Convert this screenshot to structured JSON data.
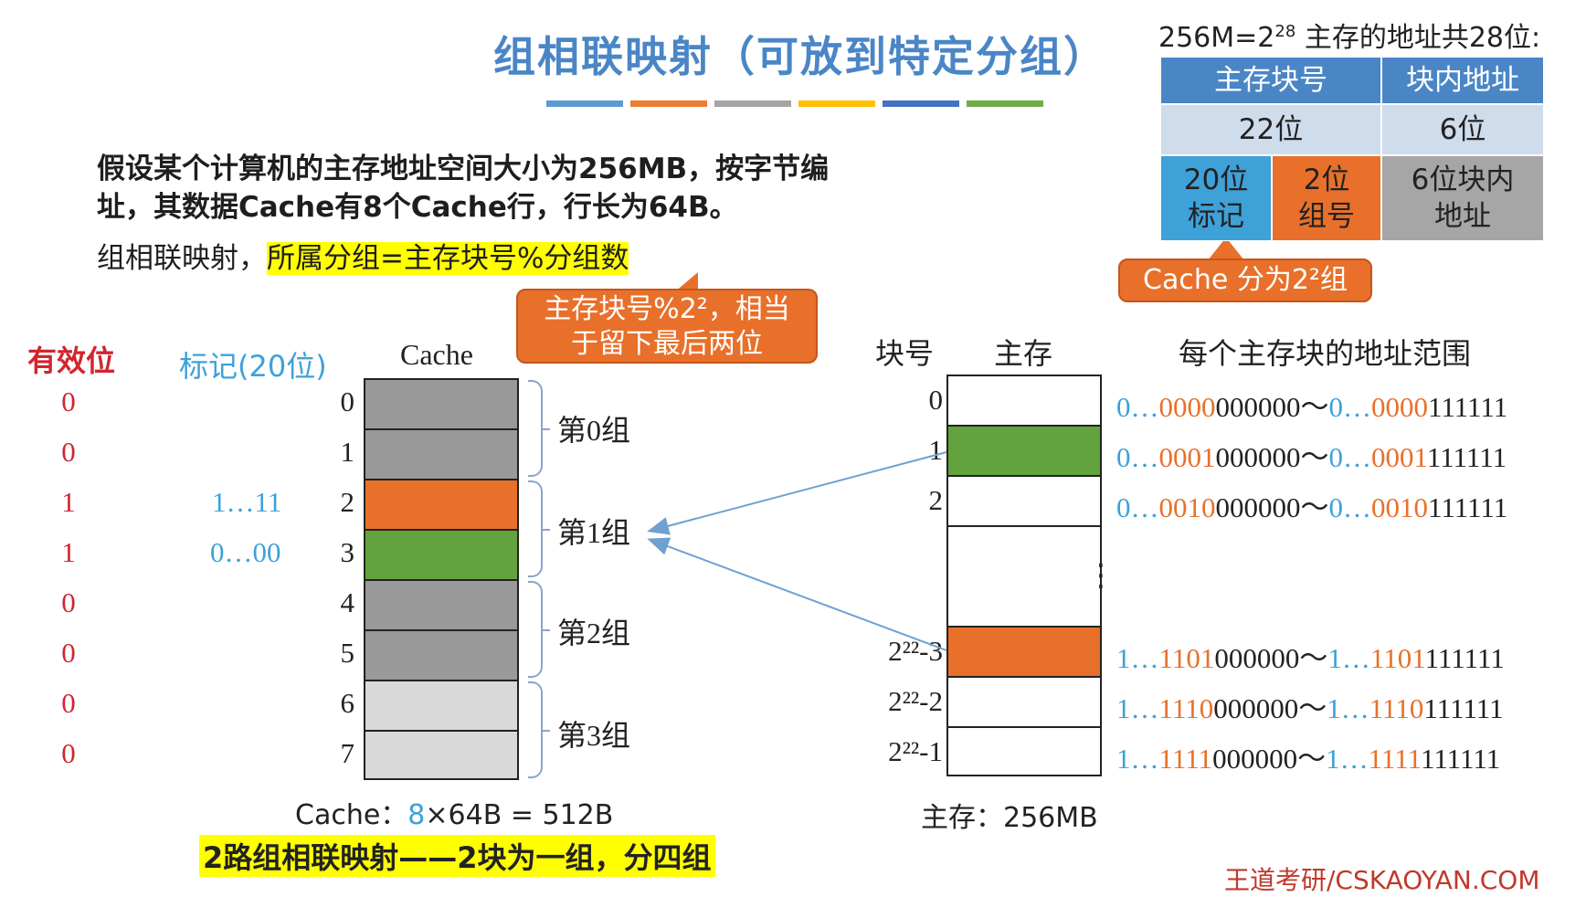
{
  "title": "组相联映射（可放到特定分组）",
  "title_lines": [
    "#5b9bd5",
    "#ed7d31",
    "#a5a5a5",
    "#ffc000",
    "#4472c4",
    "#70ad47"
  ],
  "intro": {
    "line1": "假设某个计算机的主存地址空间大小为256MB，按字节编",
    "line2": "址，其数据Cache有8个Cache行，行长为64B。",
    "rule_prefix": "组相联映射，",
    "rule_highlight": "所属分组=主存块号%分组数"
  },
  "callout_mod": {
    "line1": "主存块号%2²，相当",
    "line2": "于留下最后两位"
  },
  "callout_groups": {
    "text": "Cache 分为2²组"
  },
  "address": {
    "header_prefix": "256M=2",
    "header_exp": "28",
    "header_suffix": " 主存的地址共28位:",
    "row1": [
      "主存块号",
      "块内地址"
    ],
    "row2": [
      "22位",
      "6位"
    ],
    "row3": {
      "tag_bits": "20位",
      "tag_label": "标记",
      "group_bits": "2位",
      "group_label": "组号",
      "offset": "6位块内",
      "offset2": "地址"
    }
  },
  "cache": {
    "hdr_valid": "有效位",
    "hdr_tag": "标记(20位)",
    "hdr_cache": "Cache",
    "lines": [
      {
        "num": "0",
        "valid": "0",
        "tag": "",
        "color": "#999999"
      },
      {
        "num": "1",
        "valid": "0",
        "tag": "",
        "color": "#999999"
      },
      {
        "num": "2",
        "valid": "1",
        "tag": "1…11",
        "color": "#e8702a"
      },
      {
        "num": "3",
        "valid": "1",
        "tag": "0…00",
        "color": "#63a33d"
      },
      {
        "num": "4",
        "valid": "0",
        "tag": "",
        "color": "#999999"
      },
      {
        "num": "5",
        "valid": "0",
        "tag": "",
        "color": "#999999"
      },
      {
        "num": "6",
        "valid": "0",
        "tag": "",
        "color": "#d9d9d9"
      },
      {
        "num": "7",
        "valid": "0",
        "tag": "",
        "color": "#d9d9d9"
      }
    ],
    "groups": [
      "第0组",
      "第1组",
      "第2组",
      "第3组"
    ],
    "formula_prefix": "Cache：",
    "formula_n": "8",
    "formula_rest": "×64B = 512B",
    "two_way": "2路组相联映射——2块为一组，分四组"
  },
  "memory": {
    "hdr_block": "块号",
    "hdr_mem": "主存",
    "hdr_range": "每个主存块的地址范围",
    "rows": [
      {
        "label": "0",
        "color": "#ffffff",
        "a_pre": "0…",
        "a_mid": "0000",
        "a_post": "000000",
        "b_pre": "0…",
        "b_mid": "0000",
        "b_post": "111111"
      },
      {
        "label": "1",
        "color": "#63a33d",
        "a_pre": "0…",
        "a_mid": "0001",
        "a_post": "000000",
        "b_pre": "0…",
        "b_mid": "0001",
        "b_post": "111111"
      },
      {
        "label": "2",
        "color": "#ffffff",
        "a_pre": "0…",
        "a_mid": "0010",
        "a_post": "000000",
        "b_pre": "0…",
        "b_mid": "0010",
        "b_post": "111111"
      },
      {
        "label": "⋮",
        "color": "#ffffff"
      },
      {
        "label": "2²²-3",
        "color": "#e8702a",
        "a_pre": "1…",
        "a_mid": "1101",
        "a_post": "000000",
        "b_pre": "1…",
        "b_mid": "1101",
        "b_post": "111111"
      },
      {
        "label": "2²²-2",
        "color": "#ffffff",
        "a_pre": "1…",
        "a_mid": "1110",
        "a_post": "000000",
        "b_pre": "1…",
        "b_mid": "1110",
        "b_post": "111111"
      },
      {
        "label": "2²²-1",
        "color": "#ffffff",
        "a_pre": "1…",
        "a_mid": "1111",
        "a_post": "000000",
        "b_pre": "1…",
        "b_mid": "1111",
        "b_post": "111111"
      }
    ],
    "tilde": "～",
    "size": "主存：256MB"
  },
  "footer": "王道考研/CSKAOYAN.COM"
}
